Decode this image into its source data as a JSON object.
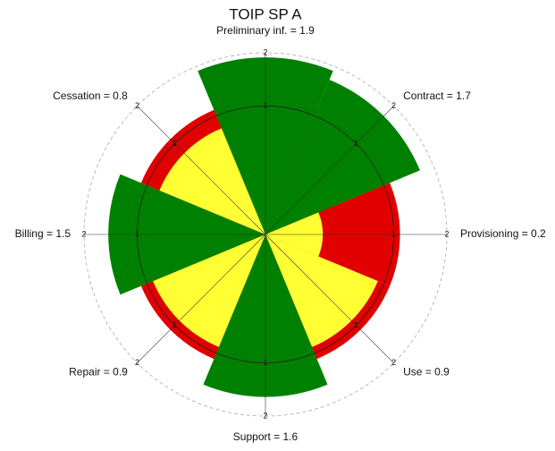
{
  "chart_data": {
    "type": "polar_bar",
    "title": "TOIP SP A",
    "categories": [
      "Preliminary inf. = 1.9",
      "Contract = 1.7",
      "Provisioning = 0.2",
      "Use = 0.9",
      "Support = 1.6",
      "Repair = 0.9",
      "Billing = 1.5",
      "Cessation = 0.8"
    ],
    "values": [
      1.9,
      1.7,
      0.2,
      0.9,
      1.6,
      0.9,
      1.5,
      0.8
    ],
    "colors": [
      "#008000",
      "#008000",
      "#ffff33",
      "#ffff33",
      "#008000",
      "#ffff33",
      "#008000",
      "#ffff33"
    ],
    "threshold": 1.1,
    "threshold_color": "#e00000",
    "rlim": [
      0,
      2
    ],
    "rticks": [
      1,
      2
    ],
    "radial_scale": "sqrt"
  }
}
